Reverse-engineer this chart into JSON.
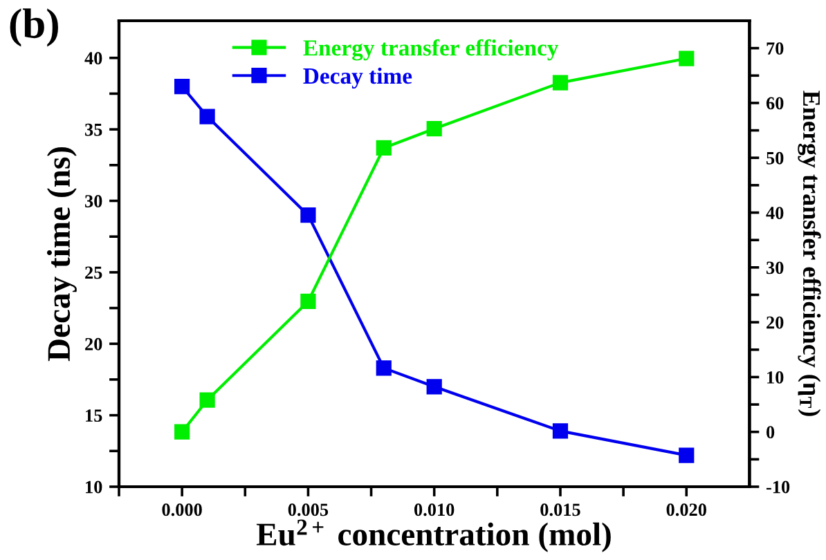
{
  "chart_data": {
    "type": "line",
    "xlabel": "Eu$^{2+}$ concentration (mol)",
    "ylabel": "Decay time (ns)",
    "y2label": "Energy transfer efficiency (η$_{T}$)",
    "annotations": [
      "(b)"
    ],
    "x": [
      0.0,
      0.001,
      0.005,
      0.008,
      0.01,
      0.015,
      0.02
    ],
    "series": [
      {
        "name": "Energy transfer efficiency",
        "color": "#00ee00",
        "axis": "y2",
        "values": [
          0.0,
          5.8,
          23.8,
          51.8,
          55.3,
          63.7,
          68.1
        ]
      },
      {
        "name": "Decay time",
        "color": "#0000ee",
        "values": [
          38.0,
          35.9,
          29.0,
          18.3,
          17.0,
          13.9,
          12.2
        ]
      }
    ],
    "xlim": [
      -0.0025,
      0.0225
    ],
    "xticks": [
      {
        "value": -0.0025,
        "label": null
      },
      {
        "value": 0.0,
        "label": "0.000"
      },
      {
        "value": 0.0025,
        "label": null
      },
      {
        "value": 0.005,
        "label": "0.005"
      },
      {
        "value": 0.0075,
        "label": null
      },
      {
        "value": 0.01,
        "label": "0.010"
      },
      {
        "value": 0.0125,
        "label": null
      },
      {
        "value": 0.015,
        "label": "0.015"
      },
      {
        "value": 0.0175,
        "label": null
      },
      {
        "value": 0.02,
        "label": "0.020"
      }
    ],
    "ylim": [
      10,
      42.6
    ],
    "yticks": [
      10,
      {
        "value": 12.5,
        "label": null
      },
      15,
      {
        "value": 17.5,
        "label": null
      },
      20,
      {
        "value": 22.5,
        "label": null
      },
      25,
      {
        "value": 27.5,
        "label": null
      },
      30,
      {
        "value": 32.5,
        "label": null
      },
      35,
      {
        "value": 37.5,
        "label": null
      },
      40
    ],
    "y2lim": [
      -10,
      75
    ],
    "y2ticks": [
      -10,
      {
        "value": -5,
        "label": null
      },
      0,
      {
        "value": 5,
        "label": null
      },
      10,
      {
        "value": 15,
        "label": null
      },
      20,
      {
        "value": 25,
        "label": null
      },
      30,
      {
        "value": 35,
        "label": null
      },
      40,
      {
        "value": 45,
        "label": null
      },
      50,
      {
        "value": 55,
        "label": null
      },
      60,
      {
        "value": 65,
        "label": null
      },
      70
    ],
    "marker": "square",
    "line_style": "solid",
    "grid": false,
    "legend": "top left"
  }
}
